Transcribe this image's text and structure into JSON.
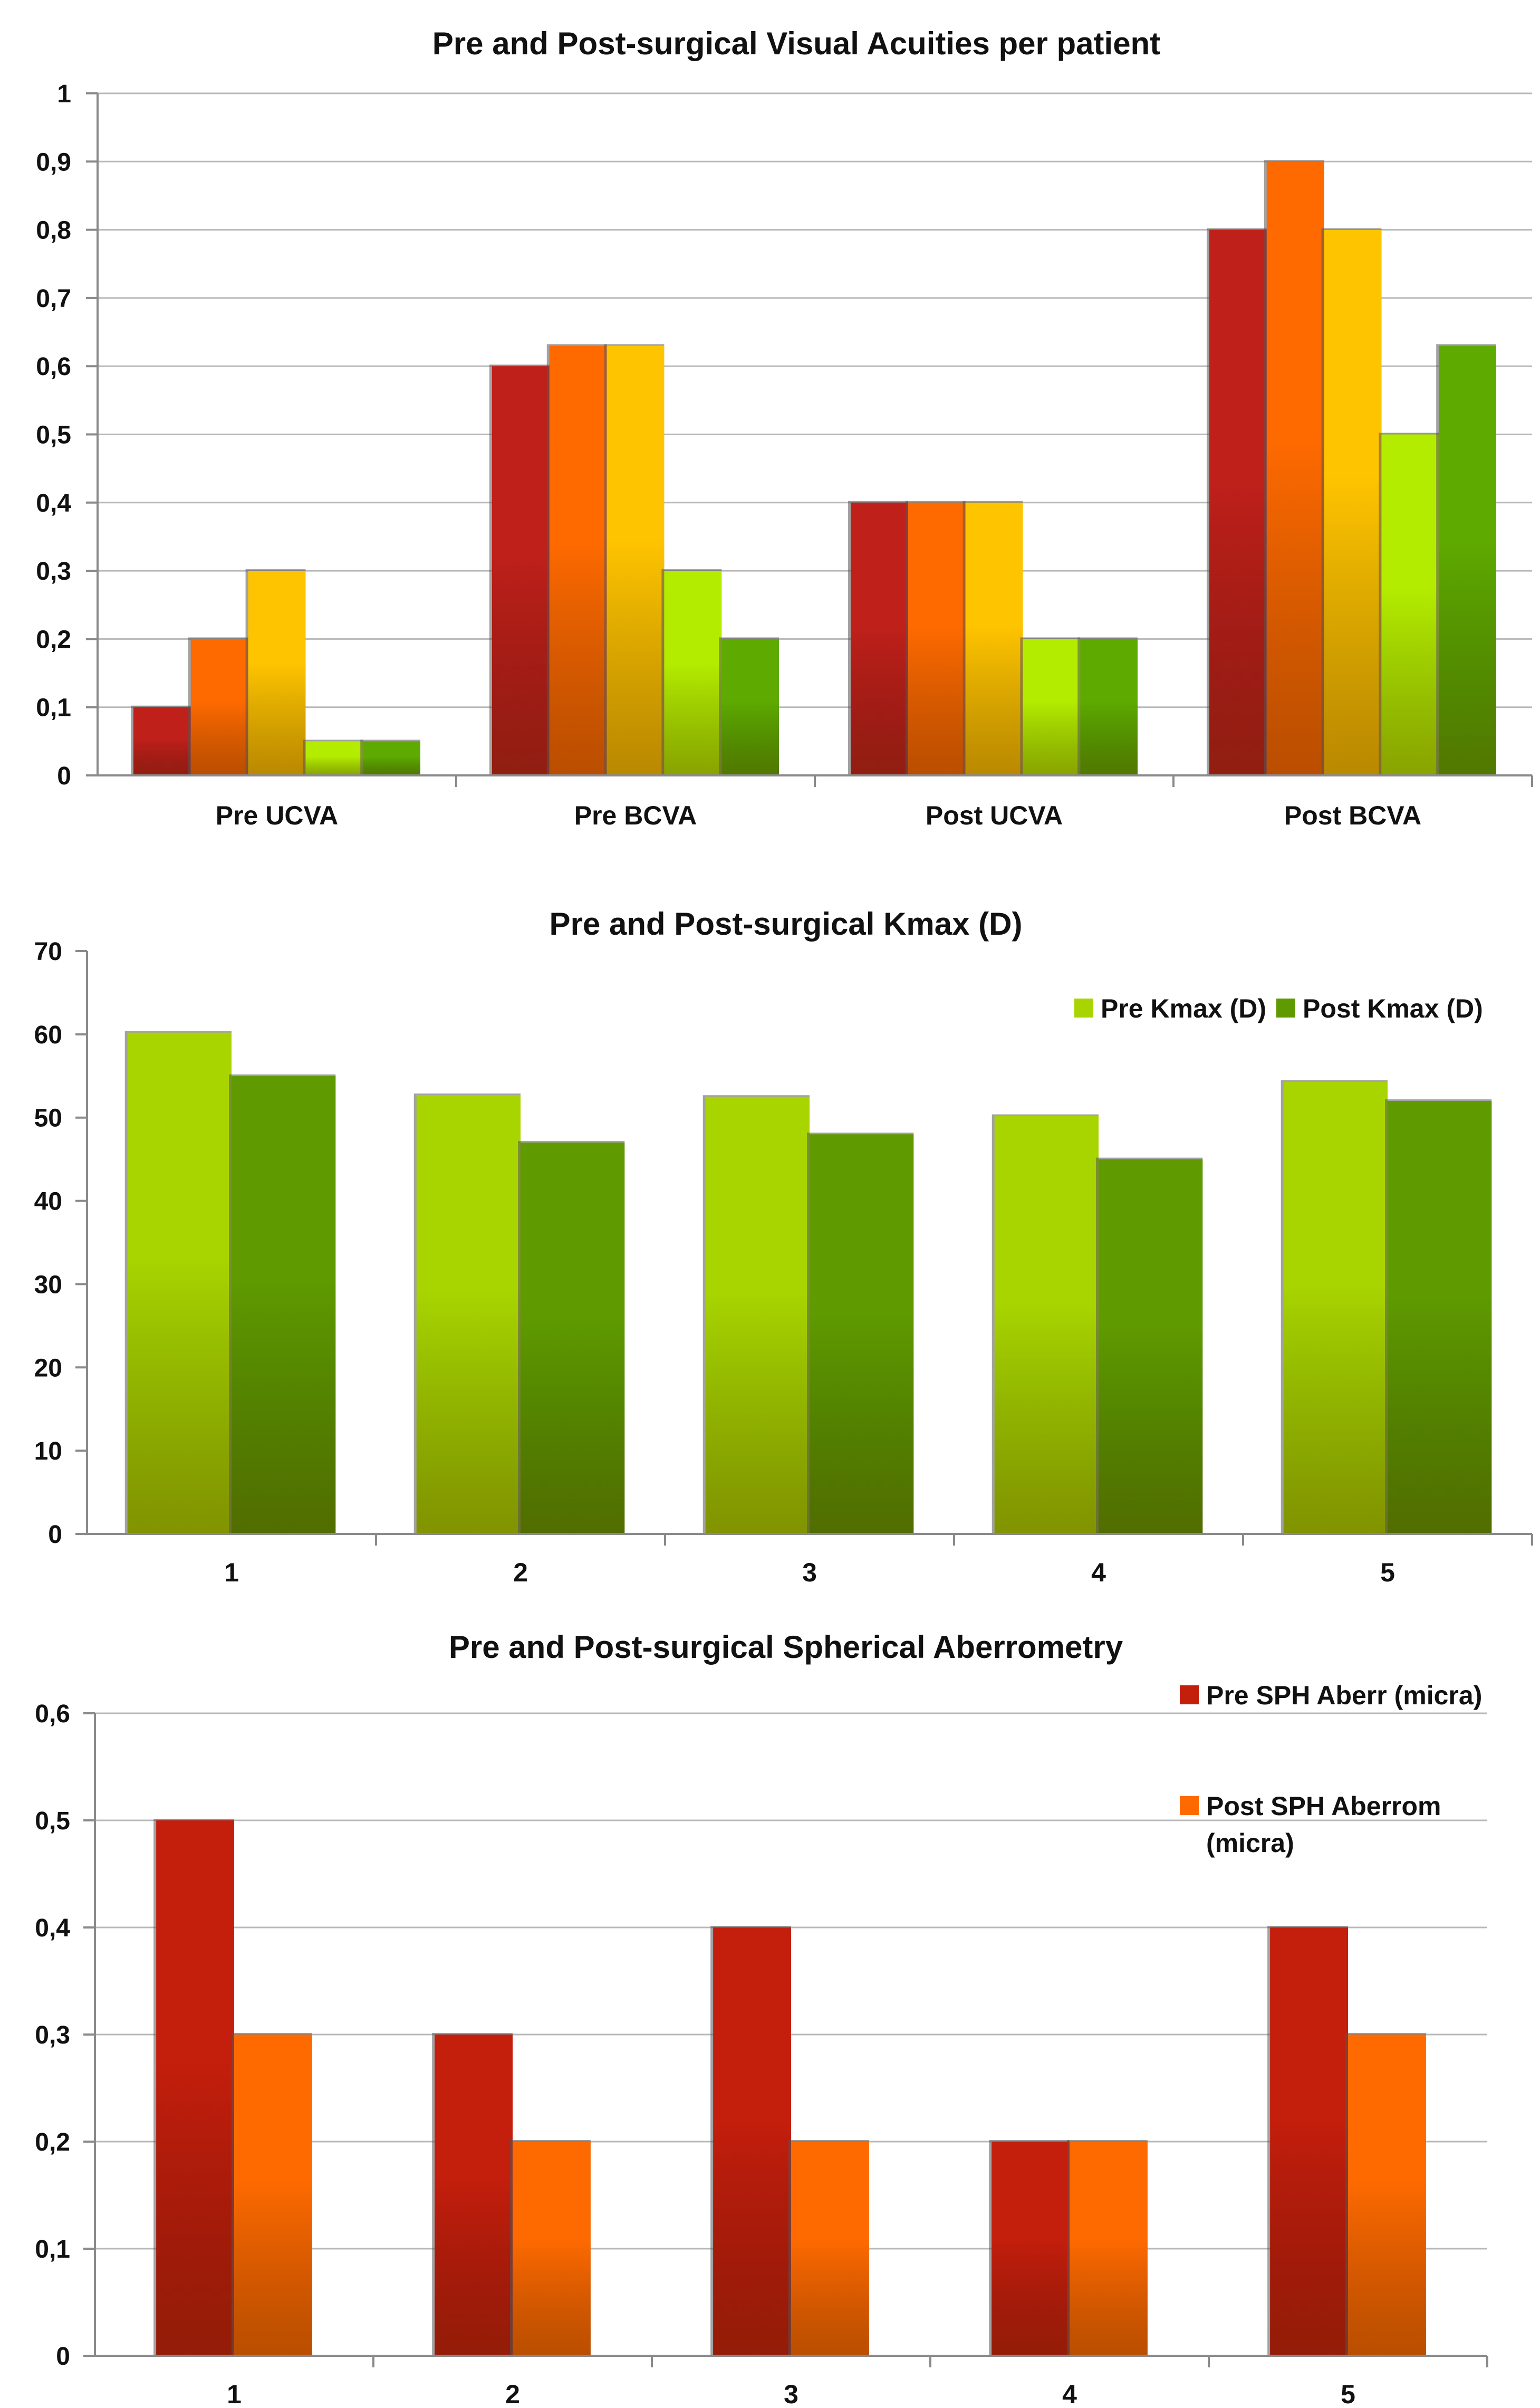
{
  "colors": {
    "patient1": "#c0201a",
    "patient2": "#ff6a00",
    "patient3": "#ffc400",
    "patient4": "#b4ec00",
    "patient5": "#5faa00",
    "pre_kmax": "#a8d400",
    "post_kmax": "#5f9a00",
    "pre_sph": "#c41e0c",
    "post_sph": "#ff6a00",
    "grid": "#b8b8b8",
    "axis": "#8a8a8a"
  },
  "chart_data": [
    {
      "type": "bar",
      "title": "Pre and Post-surgical Visual Acuities per patient",
      "categories": [
        "Pre UCVA",
        "Pre BCVA",
        "Post UCVA",
        "Post BCVA"
      ],
      "series": [
        {
          "values": [
            0.1,
            0.6,
            0.4,
            0.8
          ],
          "color": "#c0201a"
        },
        {
          "values": [
            0.2,
            0.63,
            0.4,
            0.9
          ],
          "color": "#ff6a00"
        },
        {
          "values": [
            0.3,
            0.63,
            0.4,
            0.8
          ],
          "color": "#ffc400"
        },
        {
          "values": [
            0.05,
            0.3,
            0.2,
            0.5
          ],
          "color": "#b4ec00"
        },
        {
          "values": [
            0.05,
            0.2,
            0.2,
            0.63
          ],
          "color": "#5faa00"
        }
      ],
      "ylim": [
        0,
        1
      ],
      "yticks": [
        "0",
        "0,1",
        "0,2",
        "0,3",
        "0,4",
        "0,5",
        "0,6",
        "0,7",
        "0,8",
        "0,9",
        "1"
      ],
      "grid": true,
      "legend": "none"
    },
    {
      "type": "bar",
      "title": "Pre and Post-surgical Kmax (D)",
      "categories": [
        "1",
        "2",
        "3",
        "4",
        "5"
      ],
      "series": [
        {
          "name": "Pre Kmax (D)",
          "values": [
            60.2,
            52.7,
            52.5,
            50.2,
            54.3
          ],
          "color": "#a8d400"
        },
        {
          "name": "Post Kmax (D)",
          "values": [
            55,
            47,
            48,
            45,
            52
          ],
          "color": "#5f9a00"
        }
      ],
      "ylim": [
        0,
        70
      ],
      "yticks": [
        "0",
        "10",
        "20",
        "30",
        "40",
        "50",
        "60",
        "70"
      ],
      "grid": false,
      "legend": "top-right"
    },
    {
      "type": "bar",
      "title": "Pre and Post-surgical Spherical Aberrometry",
      "categories": [
        "1",
        "2",
        "3",
        "4",
        "5"
      ],
      "series": [
        {
          "name": "Pre SPH Aberr (micra)",
          "values": [
            0.5,
            0.3,
            0.4,
            0.2,
            0.4
          ],
          "color": "#c41e0c"
        },
        {
          "name": "Post SPH Aberrom (micra)",
          "values": [
            0.3,
            0.2,
            0.2,
            0.2,
            0.3
          ],
          "color": "#ff6a00"
        }
      ],
      "ylim": [
        0,
        0.6
      ],
      "yticks": [
        "0",
        "0,1",
        "0,2",
        "0,3",
        "0,4",
        "0,5",
        "0,6"
      ],
      "grid": true,
      "legend": "right"
    }
  ]
}
